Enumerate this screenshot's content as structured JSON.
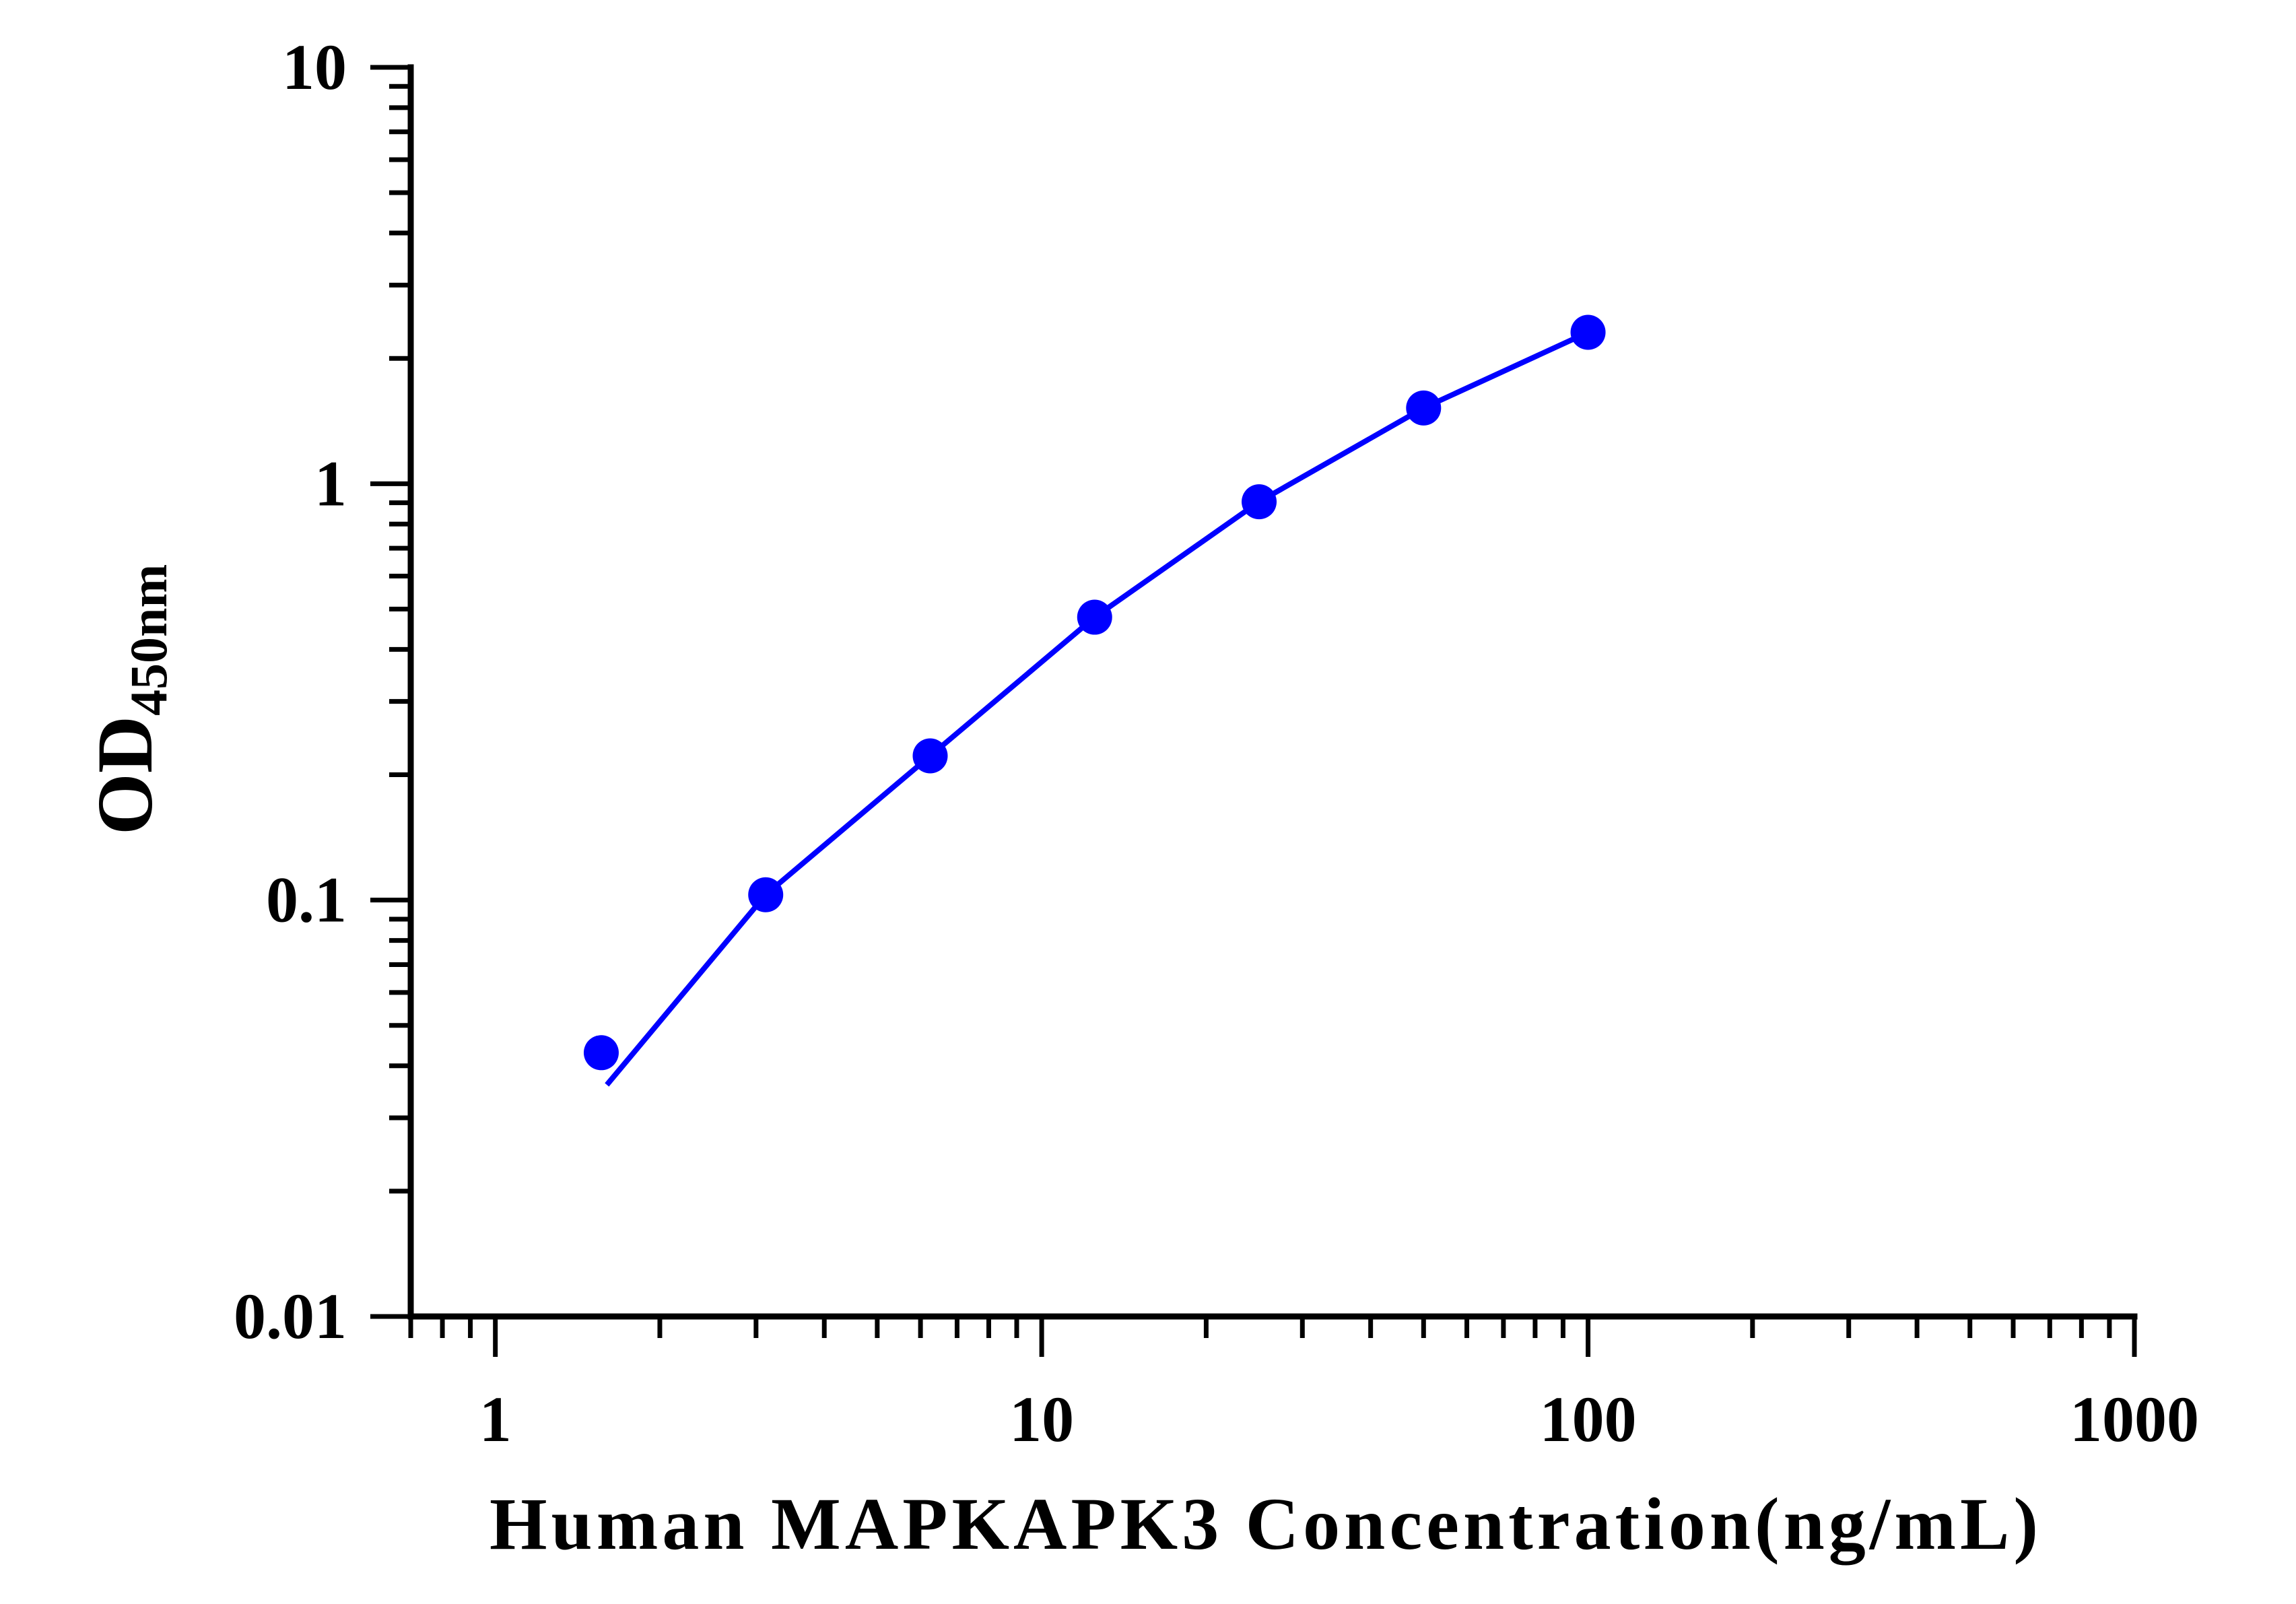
{
  "chart_data": {
    "type": "line",
    "title": "",
    "xlabel": "Human MAPKAPK3 Concentration(ng/mL)",
    "ylabel": {
      "main": "OD",
      "subscript": "450nm"
    },
    "xscale": "log",
    "yscale": "log",
    "xlim": [
      0.7,
      1000
    ],
    "ylim": [
      0.01,
      10
    ],
    "x_tick_labels": [
      "1",
      "10",
      "100",
      "1000"
    ],
    "x_tick_values": [
      1,
      10,
      100,
      1000
    ],
    "y_tick_labels": [
      "0.01",
      "0.1",
      "1",
      "10"
    ],
    "y_tick_values": [
      0.01,
      0.1,
      1,
      10
    ],
    "grid": false,
    "legend": "none",
    "color": "#0000ff",
    "series": [
      {
        "x": [
          1.5625,
          3.125,
          6.25,
          12.5,
          25,
          50,
          100
        ],
        "y": [
          0.043,
          0.103,
          0.222,
          0.478,
          0.905,
          1.52,
          2.31
        ]
      }
    ],
    "fit_curve": {
      "x": [
        1.6,
        3.125,
        6.25,
        12.5,
        25,
        50,
        100
      ],
      "y": [
        0.036,
        0.103,
        0.222,
        0.478,
        0.905,
        1.52,
        2.31
      ]
    }
  }
}
